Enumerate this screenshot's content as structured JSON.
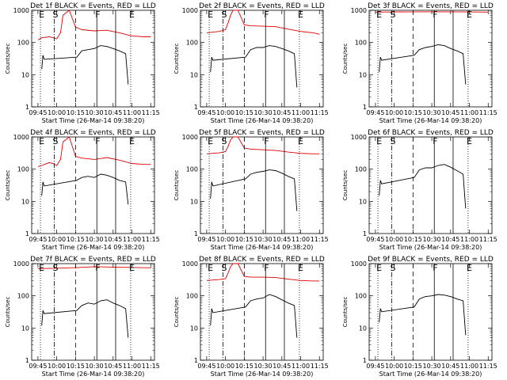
{
  "chart_data": [
    {
      "type": "line",
      "title": "Det 1f BLACK = Events, RED = LLD",
      "ylabel": "Counts/sec",
      "xlabel": "Start Time (26-Mar-14 09:38:20)",
      "x_ticks": [
        "09:45",
        "10:00",
        "10:15",
        "10:30",
        "10:45",
        "11:00",
        "11:15"
      ],
      "y_ticks": [
        "1",
        "10",
        "100",
        "1000"
      ],
      "y_scale": "log",
      "ylim": [
        1,
        1000
      ],
      "markers": [
        "E",
        "S",
        "F",
        "E"
      ],
      "series": [
        {
          "color": "#000000",
          "x": [
            "09:48",
            "09:49",
            "09:50",
            "10:16",
            "10:20",
            "10:25",
            "10:30",
            "10:35",
            "10:40",
            "10:45",
            "10:50",
            "10:55",
            "10:57"
          ],
          "values": [
            15,
            40,
            30,
            35,
            55,
            60,
            65,
            80,
            75,
            65,
            55,
            45,
            5
          ]
        },
        {
          "color": "#e00000",
          "x": [
            "09:45",
            "09:48",
            "09:54",
            "09:57",
            "10:00",
            "10:03",
            "10:05",
            "10:10",
            "10:15",
            "10:20",
            "10:30",
            "10:40",
            "10:50",
            "11:00",
            "11:10",
            "11:15"
          ],
          "values": [
            120,
            140,
            150,
            140,
            130,
            200,
            700,
            1000,
            300,
            250,
            230,
            240,
            200,
            160,
            150,
            150
          ]
        }
      ]
    },
    {
      "type": "line",
      "title": "Det 2f BLACK = Events, RED = LLD",
      "ylabel": "Counts/sec",
      "xlabel": "Start Time (26-Mar-14 09:38:20)",
      "x_ticks": [
        "09:45",
        "10:00",
        "10:15",
        "10:30",
        "10:45",
        "11:00",
        "11:15"
      ],
      "y_ticks": [
        "1",
        "10",
        "100",
        "1000"
      ],
      "y_scale": "log",
      "ylim": [
        1,
        1000
      ],
      "markers": [
        "E",
        "S",
        "F",
        "E"
      ],
      "series": [
        {
          "color": "#000000",
          "x": [
            "09:48",
            "09:49",
            "09:50",
            "10:16",
            "10:20",
            "10:25",
            "10:30",
            "10:35",
            "10:40",
            "10:45",
            "10:50",
            "10:55",
            "10:57"
          ],
          "values": [
            12,
            35,
            28,
            35,
            60,
            70,
            70,
            80,
            75,
            65,
            55,
            45,
            4
          ]
        },
        {
          "color": "#e00000",
          "x": [
            "09:45",
            "09:50",
            "09:55",
            "10:00",
            "10:02",
            "10:04",
            "10:06",
            "10:10",
            "10:15",
            "10:20",
            "10:30",
            "10:40",
            "10:50",
            "11:00",
            "11:10",
            "11:15"
          ],
          "values": [
            200,
            210,
            220,
            250,
            400,
            700,
            1000,
            1000,
            350,
            330,
            320,
            310,
            260,
            220,
            200,
            180
          ]
        }
      ]
    },
    {
      "type": "line",
      "title": "Det 3f BLACK = Events, RED = LLD",
      "ylabel": "Counts/sec",
      "xlabel": "Start Time (26-Mar-14 09:38:20)",
      "x_ticks": [
        "09:45",
        "10:00",
        "10:15",
        "10:30",
        "10:45",
        "11:00",
        "11:15"
      ],
      "y_ticks": [
        "1",
        "10",
        "100",
        "1000"
      ],
      "y_scale": "log",
      "ylim": [
        1,
        1000
      ],
      "markers": [
        "E",
        "S",
        "F",
        "E"
      ],
      "series": [
        {
          "color": "#000000",
          "x": [
            "09:48",
            "09:49",
            "09:50",
            "10:16",
            "10:20",
            "10:25",
            "10:30",
            "10:35",
            "10:40",
            "10:45",
            "10:50",
            "10:55",
            "10:57"
          ],
          "values": [
            12,
            35,
            28,
            40,
            60,
            70,
            75,
            85,
            80,
            65,
            55,
            45,
            5
          ]
        },
        {
          "color": "#e00000",
          "x": [
            "09:45",
            "10:00",
            "10:15",
            "10:30",
            "10:45",
            "11:00",
            "11:15"
          ],
          "values": [
            880,
            890,
            900,
            900,
            900,
            890,
            880
          ]
        }
      ]
    },
    {
      "type": "line",
      "title": "Det 4f BLACK = Events, RED = LLD",
      "ylabel": "Counts/sec",
      "xlabel": "Start Time (26-Mar-14 09:38:20)",
      "x_ticks": [
        "09:45",
        "10:00",
        "10:15",
        "10:30",
        "10:45",
        "11:00",
        "11:15"
      ],
      "y_ticks": [
        "1",
        "10",
        "100",
        "1000"
      ],
      "y_scale": "log",
      "ylim": [
        1,
        1000
      ],
      "markers": [
        "E",
        "S",
        "F",
        "E"
      ],
      "series": [
        {
          "color": "#000000",
          "x": [
            "09:48",
            "09:49",
            "09:50",
            "10:16",
            "10:20",
            "10:25",
            "10:30",
            "10:35",
            "10:40",
            "10:45",
            "10:50",
            "10:55",
            "10:57"
          ],
          "values": [
            15,
            40,
            30,
            45,
            55,
            60,
            55,
            70,
            65,
            55,
            45,
            40,
            8
          ]
        },
        {
          "color": "#e00000",
          "x": [
            "09:45",
            "09:48",
            "09:54",
            "09:57",
            "10:00",
            "10:03",
            "10:05",
            "10:10",
            "10:15",
            "10:20",
            "10:30",
            "10:40",
            "10:50",
            "11:00",
            "11:10",
            "11:15"
          ],
          "values": [
            120,
            130,
            160,
            150,
            130,
            200,
            700,
            1000,
            250,
            220,
            200,
            230,
            190,
            150,
            140,
            140
          ]
        }
      ]
    },
    {
      "type": "line",
      "title": "Det 5f BLACK = Events, RED = LLD",
      "ylabel": "Counts/sec",
      "xlabel": "Start Time (26-Mar-14 09:38:20)",
      "x_ticks": [
        "09:45",
        "10:00",
        "10:15",
        "10:30",
        "10:45",
        "11:00",
        "11:15"
      ],
      "y_ticks": [
        "1",
        "10",
        "100",
        "1000"
      ],
      "y_scale": "log",
      "ylim": [
        1,
        1000
      ],
      "markers": [
        "E",
        "S",
        "F",
        "E"
      ],
      "series": [
        {
          "color": "#000000",
          "x": [
            "09:48",
            "09:49",
            "09:50",
            "10:16",
            "10:20",
            "10:25",
            "10:30",
            "10:35",
            "10:40",
            "10:45",
            "10:50",
            "10:55",
            "10:57"
          ],
          "values": [
            12,
            40,
            30,
            50,
            70,
            80,
            85,
            95,
            90,
            75,
            60,
            50,
            5
          ]
        },
        {
          "color": "#e00000",
          "x": [
            "09:45",
            "09:50",
            "09:55",
            "10:00",
            "10:02",
            "10:04",
            "10:06",
            "10:10",
            "10:15",
            "10:20",
            "10:30",
            "10:40",
            "10:50",
            "11:00",
            "11:10",
            "11:15"
          ],
          "values": [
            300,
            310,
            320,
            350,
            500,
            800,
            1000,
            1000,
            450,
            420,
            400,
            380,
            340,
            310,
            300,
            300
          ]
        }
      ]
    },
    {
      "type": "line",
      "title": "Det 6f BLACK = Events, RED = LLD",
      "ylabel": "Counts/sec",
      "xlabel": "Start Time (26-Mar-14 09:38:20)",
      "x_ticks": [
        "09:45",
        "10:00",
        "10:15",
        "10:30",
        "10:45",
        "11:00",
        "11:15"
      ],
      "y_ticks": [
        "1",
        "10",
        "100",
        "1000"
      ],
      "y_scale": "log",
      "ylim": [
        1,
        1000
      ],
      "markers": [
        "E",
        "S",
        "F",
        "E"
      ],
      "series": [
        {
          "color": "#000000",
          "x": [
            "09:48",
            "09:49",
            "09:50",
            "10:16",
            "10:20",
            "10:25",
            "10:30",
            "10:35",
            "10:40",
            "10:45",
            "10:50",
            "10:55",
            "10:57"
          ],
          "values": [
            15,
            45,
            35,
            55,
            95,
            110,
            110,
            130,
            140,
            115,
            90,
            70,
            6
          ]
        }
      ]
    },
    {
      "type": "line",
      "title": "Det 7f BLACK = Events, RED = LLD",
      "ylabel": "Counts/sec",
      "xlabel": "Start Time (26-Mar-14 09:38:20)",
      "x_ticks": [
        "09:45",
        "10:00",
        "10:15",
        "10:30",
        "10:45",
        "11:00",
        "11:15"
      ],
      "y_ticks": [
        "1",
        "10",
        "100",
        "1000"
      ],
      "y_scale": "log",
      "ylim": [
        1,
        1000
      ],
      "markers": [
        "E",
        "S",
        "F",
        "E"
      ],
      "series": [
        {
          "color": "#000000",
          "x": [
            "09:48",
            "09:49",
            "09:50",
            "10:16",
            "10:20",
            "10:25",
            "10:30",
            "10:35",
            "10:40",
            "10:45",
            "10:50",
            "10:55",
            "10:57"
          ],
          "values": [
            12,
            35,
            28,
            35,
            50,
            60,
            55,
            70,
            75,
            60,
            50,
            40,
            5
          ]
        },
        {
          "color": "#e00000",
          "x": [
            "09:45",
            "10:00",
            "10:15",
            "10:30",
            "10:45",
            "11:00",
            "11:15"
          ],
          "values": [
            700,
            720,
            750,
            800,
            780,
            760,
            740
          ]
        }
      ]
    },
    {
      "type": "line",
      "title": "Det 8f BLACK = Events, RED = LLD",
      "ylabel": "Counts/sec",
      "xlabel": "Start Time (26-Mar-14 09:38:20)",
      "x_ticks": [
        "09:45",
        "10:00",
        "10:15",
        "10:30",
        "10:45",
        "11:00",
        "11:15"
      ],
      "y_ticks": [
        "1",
        "10",
        "100",
        "1000"
      ],
      "y_scale": "log",
      "ylim": [
        1,
        1000
      ],
      "markers": [
        "E",
        "S",
        "F",
        "E"
      ],
      "series": [
        {
          "color": "#000000",
          "x": [
            "09:48",
            "09:49",
            "09:50",
            "10:16",
            "10:20",
            "10:25",
            "10:30",
            "10:35",
            "10:40",
            "10:45",
            "10:50",
            "10:55",
            "10:57"
          ],
          "values": [
            12,
            40,
            30,
            45,
            70,
            80,
            85,
            110,
            95,
            75,
            60,
            50,
            5
          ]
        },
        {
          "color": "#e00000",
          "x": [
            "09:45",
            "09:50",
            "09:55",
            "10:00",
            "10:02",
            "10:04",
            "10:06",
            "10:10",
            "10:15",
            "10:20",
            "10:30",
            "10:40",
            "10:50",
            "11:00",
            "11:10",
            "11:15"
          ],
          "values": [
            300,
            310,
            320,
            340,
            500,
            800,
            1000,
            1000,
            400,
            380,
            380,
            370,
            330,
            300,
            290,
            290
          ]
        }
      ]
    },
    {
      "type": "line",
      "title": "Det 9f BLACK = Events, RED = LLD",
      "ylabel": "Counts/sec",
      "xlabel": "Start Time (26-Mar-14 09:38:20)",
      "x_ticks": [
        "09:45",
        "10:00",
        "10:15",
        "10:30",
        "10:45",
        "11:00",
        "11:15"
      ],
      "y_ticks": [
        "1",
        "10",
        "100",
        "1000"
      ],
      "y_scale": "log",
      "ylim": [
        1,
        1000
      ],
      "markers": [
        "E",
        "S",
        "F",
        "E"
      ],
      "series": [
        {
          "color": "#000000",
          "x": [
            "09:48",
            "09:49",
            "09:50",
            "10:16",
            "10:20",
            "10:25",
            "10:30",
            "10:35",
            "10:40",
            "10:45",
            "10:50",
            "10:55",
            "10:57"
          ],
          "values": [
            15,
            40,
            32,
            45,
            80,
            95,
            100,
            110,
            105,
            95,
            80,
            70,
            6
          ]
        }
      ]
    }
  ]
}
